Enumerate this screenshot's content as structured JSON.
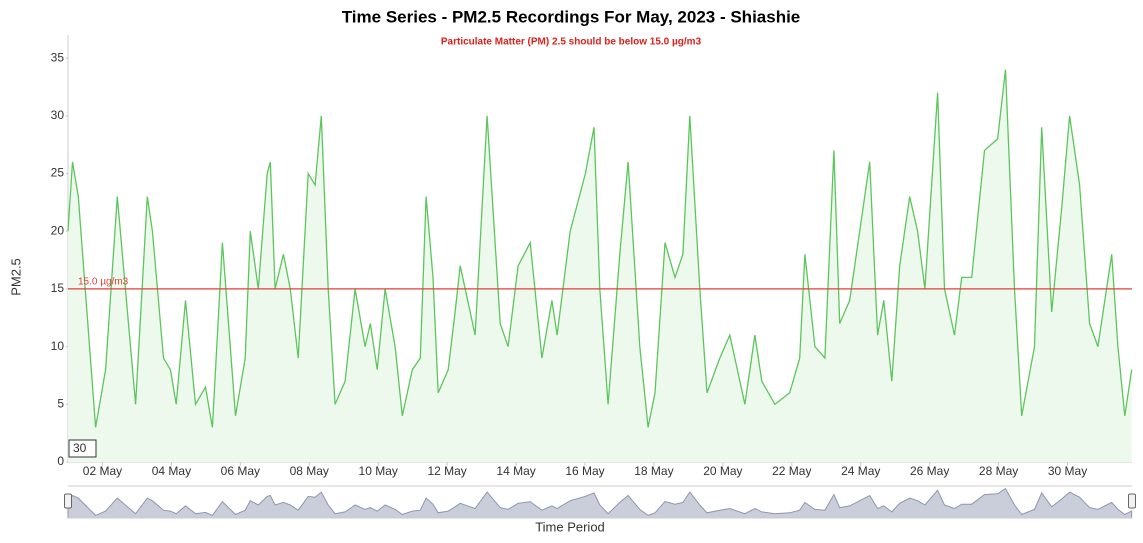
{
  "chart_data": {
    "type": "line",
    "title": "Time Series - PM2.5 Recordings For May, 2023 - Shiashie",
    "subtitle": "Particulate Matter (PM) 2.5 should be below 15.0 µg/m3",
    "x_label": "Time Period",
    "y_label": "PM2.5",
    "color": "#5cc65c",
    "fill_color": "#eef9ee",
    "x": [
      1.0,
      1.13,
      1.3,
      1.8,
      2.09,
      2.43,
      2.96,
      3.3,
      3.45,
      3.77,
      3.97,
      4.14,
      4.41,
      4.7,
      4.99,
      5.19,
      5.48,
      5.86,
      6.14,
      6.29,
      6.52,
      6.78,
      6.87,
      7.01,
      7.25,
      7.45,
      7.68,
      7.97,
      8.17,
      8.35,
      8.55,
      8.75,
      9.04,
      9.33,
      9.62,
      9.77,
      9.97,
      10.2,
      10.49,
      10.7,
      10.99,
      11.22,
      11.39,
      11.59,
      11.74,
      12.03,
      12.23,
      12.38,
      12.67,
      12.81,
      13.16,
      13.54,
      13.77,
      14.06,
      14.41,
      14.75,
      15.04,
      15.19,
      15.57,
      16.01,
      16.26,
      16.43,
      16.67,
      17.01,
      17.25,
      17.59,
      17.83,
      18.03,
      18.32,
      18.61,
      18.84,
      19.04,
      19.33,
      19.54,
      19.91,
      20.2,
      20.64,
      20.93,
      21.13,
      21.51,
      21.94,
      22.23,
      22.38,
      22.67,
      22.96,
      23.22,
      23.39,
      23.68,
      24.26,
      24.49,
      24.67,
      24.9,
      25.13,
      25.42,
      25.65,
      25.86,
      26.23,
      26.43,
      26.72,
      26.93,
      27.22,
      27.59,
      27.97,
      28.2,
      28.46,
      28.67,
      29.04,
      29.25,
      29.54,
      29.83,
      30.06,
      30.35,
      30.64,
      30.88,
      31.28,
      31.46,
      31.66,
      31.86
    ],
    "values": [
      20,
      26,
      23,
      3,
      8,
      23,
      5,
      23,
      20,
      9,
      8,
      5,
      14,
      5,
      6.5,
      3,
      19,
      4,
      9,
      20,
      15,
      25,
      26,
      15,
      18,
      15,
      9,
      25,
      24,
      30,
      15,
      5,
      7,
      15,
      10,
      12,
      8,
      15,
      10,
      4,
      8,
      9,
      23,
      16,
      6,
      8,
      13,
      17,
      13,
      11,
      30,
      12,
      10,
      17,
      19,
      9,
      14,
      11,
      20,
      25,
      29,
      15,
      5,
      18,
      26,
      10,
      3,
      6,
      19,
      16,
      18,
      30,
      15,
      6,
      9,
      11,
      5,
      11,
      7,
      5,
      6,
      9,
      18,
      10,
      9,
      27,
      12,
      14,
      26,
      11,
      14,
      7,
      17,
      23,
      20,
      15,
      32,
      15,
      11,
      16,
      16,
      27,
      28,
      34,
      15,
      4,
      10,
      29,
      13,
      22,
      30,
      24,
      12,
      10,
      18,
      10,
      4,
      8
    ],
    "xlim": [
      1,
      31.87
    ],
    "xticks": [
      {
        "value": 2,
        "label": "02 May"
      },
      {
        "value": 4,
        "label": "04 May"
      },
      {
        "value": 6,
        "label": "06 May"
      },
      {
        "value": 8,
        "label": "08 May"
      },
      {
        "value": 10,
        "label": "10 May"
      },
      {
        "value": 12,
        "label": "12 May"
      },
      {
        "value": 14,
        "label": "14 May"
      },
      {
        "value": 16,
        "label": "16 May"
      },
      {
        "value": 18,
        "label": "18 May"
      },
      {
        "value": 20,
        "label": "20 May"
      },
      {
        "value": 22,
        "label": "22 May"
      },
      {
        "value": 24,
        "label": "24 May"
      },
      {
        "value": 26,
        "label": "26 May"
      },
      {
        "value": 28,
        "label": "28 May"
      },
      {
        "value": 30,
        "label": "30 May"
      }
    ],
    "ylim": [
      0,
      37
    ],
    "yticks": [
      0,
      5,
      10,
      15,
      20,
      25,
      30,
      35
    ],
    "threshold": {
      "value": 15,
      "label": "15.0 µg/m3",
      "color": "#e0403a"
    },
    "range_label": "30"
  }
}
